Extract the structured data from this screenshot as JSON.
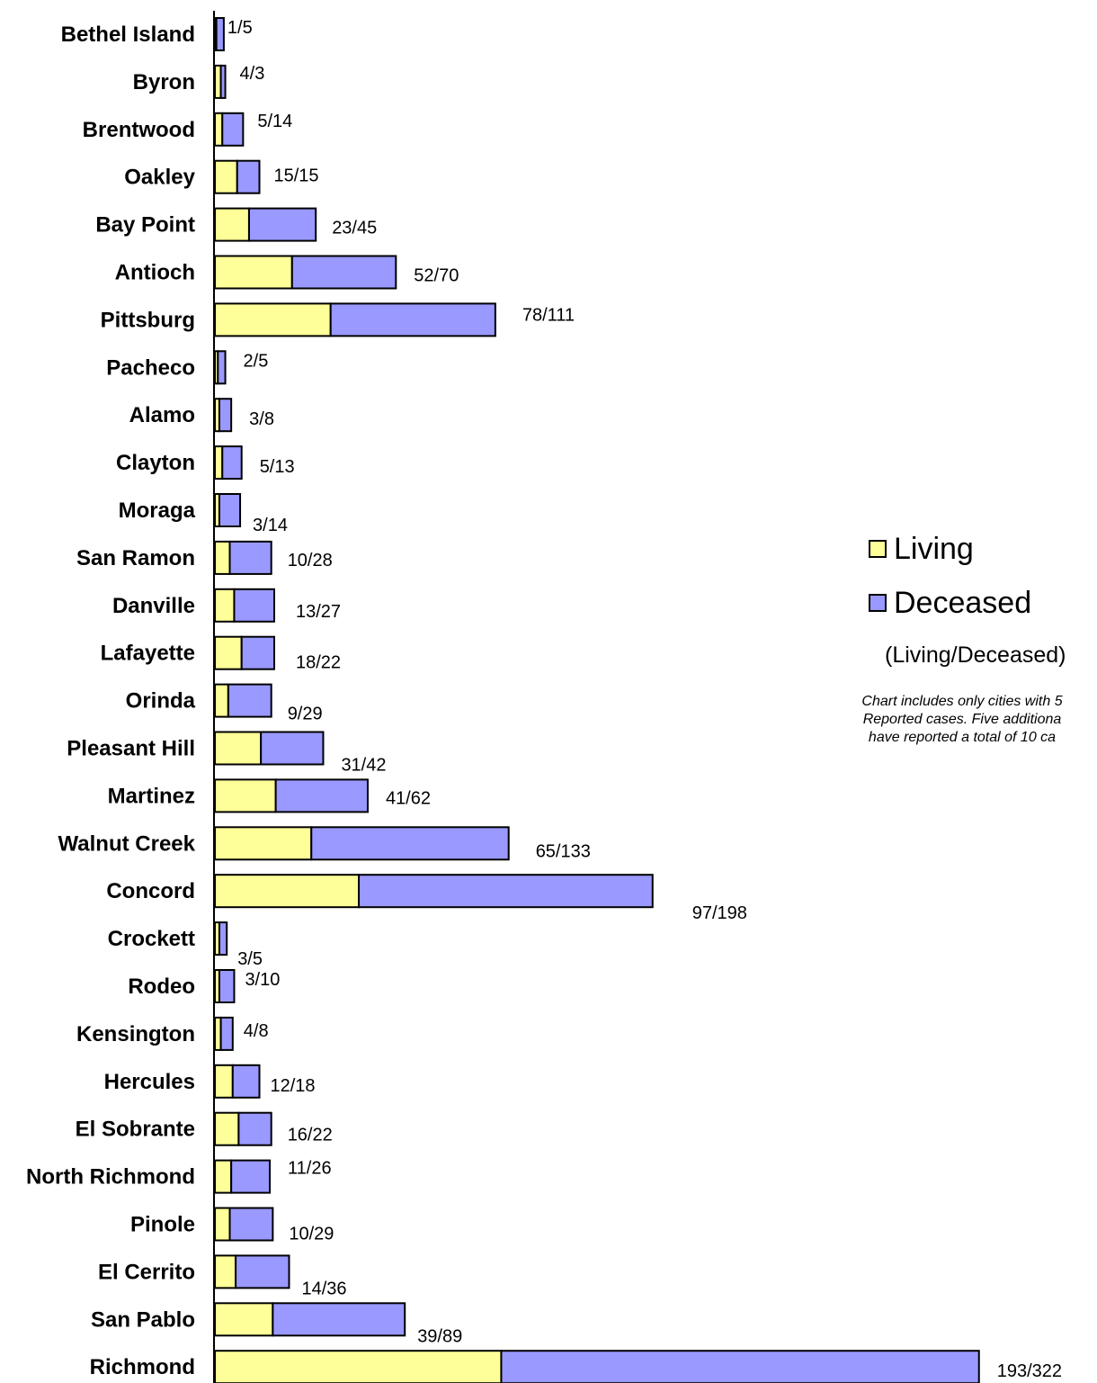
{
  "chart_data": {
    "type": "bar",
    "orientation": "horizontal",
    "stacked": true,
    "categories": [
      "Bethel Island",
      "Byron",
      "Brentwood",
      "Oakley",
      "Bay Point",
      "Antioch",
      "Pittsburg",
      "Pacheco",
      "Alamo",
      "Clayton",
      "Moraga",
      "San Ramon",
      "Danville",
      "Lafayette",
      "Orinda",
      "Pleasant Hill",
      "Martinez",
      "Walnut Creek",
      "Concord",
      "Crockett",
      "Rodeo",
      "Kensington",
      "Hercules",
      "El Sobrante",
      "North Richmond",
      "Pinole",
      "El Cerrito",
      "San Pablo",
      "Richmond"
    ],
    "series": [
      {
        "name": "Living",
        "color": "#ffff99",
        "values": [
          1,
          4,
          5,
          15,
          23,
          52,
          78,
          2,
          3,
          5,
          3,
          10,
          13,
          18,
          9,
          31,
          41,
          65,
          97,
          3,
          3,
          4,
          12,
          16,
          11,
          10,
          14,
          39,
          193
        ]
      },
      {
        "name": "Deceased",
        "color": "#9999ff",
        "values": [
          5,
          3,
          14,
          15,
          45,
          70,
          111,
          5,
          8,
          13,
          14,
          28,
          27,
          22,
          29,
          42,
          62,
          133,
          198,
          5,
          10,
          8,
          18,
          22,
          26,
          29,
          36,
          89,
          322
        ]
      }
    ],
    "data_labels": [
      "1/5",
      "4/3",
      "5/14",
      "15/15",
      "23/45",
      "52/70",
      "78/111",
      "2/5",
      "3/8",
      "5/13",
      "3/14",
      "10/28",
      "13/27",
      "18/22",
      "9/29",
      "31/42",
      "41/62",
      "65/133",
      "97/198",
      "3/5",
      "3/10",
      "4/8",
      "12/18",
      "16/22",
      "11/26",
      "10/29",
      "14/36",
      "39/89",
      "193/322"
    ],
    "xlim": [
      0,
      515
    ],
    "grid": false,
    "legend_position": "right",
    "legend_note": "(Living/Deceased)",
    "footnote": [
      "Chart includes only cities with 5",
      "Reported cases.  Five additiona",
      "have reported a total of 10 ca"
    ],
    "title": "",
    "xlabel": "",
    "ylabel": ""
  }
}
